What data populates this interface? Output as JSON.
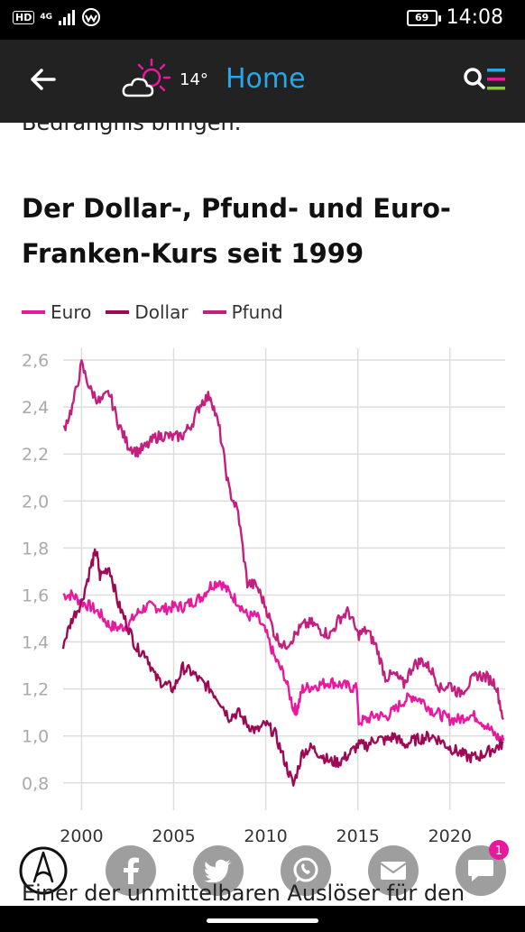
{
  "status_bar": {
    "network_label": "HD",
    "network_type": "4G",
    "battery": "69",
    "time": "14:08"
  },
  "app_bar": {
    "temperature": "14°",
    "home_label": "Home"
  },
  "article": {
    "cut_text_top": "Bedrängnis bringen.",
    "chart_title": "Der Dollar-, Pfund- und Euro-Franken-Kurs seit 1999",
    "next_text": "Einer der unmittelbaren Auslöser für den"
  },
  "chart_data": {
    "type": "line",
    "x_ticks": [
      2000,
      2005,
      2010,
      2015,
      2020
    ],
    "y_ticks": [
      "2,6",
      "2,4",
      "2,2",
      "2,0",
      "1,8",
      "1,6",
      "1,4",
      "1,2",
      "1,0",
      "0,8"
    ],
    "xlim": [
      1999,
      2023
    ],
    "ylim": [
      0.73,
      2.65
    ],
    "grid": "both",
    "legend": "top-left",
    "series": [
      {
        "name": "Euro",
        "color": "#e8199e",
        "x": [
          1999,
          1999.5,
          2000,
          2000.5,
          2001,
          2001.5,
          2002,
          2002.5,
          2003,
          2003.5,
          2004,
          2004.5,
          2005,
          2005.5,
          2006,
          2006.5,
          2007,
          2007.5,
          2008,
          2008.5,
          2009,
          2009.5,
          2010,
          2010.5,
          2011,
          2011.5,
          2011.7,
          2012,
          2012.5,
          2013,
          2013.5,
          2014,
          2014.5,
          2014.95,
          2015.05,
          2015.5,
          2016,
          2016.5,
          2017,
          2017.5,
          2018,
          2018.5,
          2019,
          2019.5,
          2020,
          2020.5,
          2021,
          2021.5,
          2022,
          2022.5,
          2022.9
        ],
        "y": [
          1.6,
          1.6,
          1.57,
          1.55,
          1.52,
          1.47,
          1.46,
          1.47,
          1.52,
          1.55,
          1.55,
          1.54,
          1.55,
          1.55,
          1.57,
          1.59,
          1.64,
          1.66,
          1.61,
          1.57,
          1.51,
          1.51,
          1.44,
          1.33,
          1.26,
          1.12,
          1.11,
          1.2,
          1.21,
          1.22,
          1.23,
          1.22,
          1.21,
          1.2,
          1.06,
          1.07,
          1.09,
          1.08,
          1.11,
          1.15,
          1.17,
          1.15,
          1.11,
          1.09,
          1.07,
          1.07,
          1.09,
          1.08,
          1.04,
          1.0,
          0.98
        ]
      },
      {
        "name": "Dollar",
        "color": "#9c0a55",
        "x": [
          1999,
          1999.5,
          2000,
          2000.5,
          2000.8,
          2001,
          2001.5,
          2002,
          2002.5,
          2003,
          2003.5,
          2004,
          2004.5,
          2005,
          2005.5,
          2006,
          2006.5,
          2007,
          2007.5,
          2008,
          2008.5,
          2009,
          2009.5,
          2010,
          2010.5,
          2011,
          2011.5,
          2012,
          2012.5,
          2013,
          2013.5,
          2014,
          2014.5,
          2015,
          2015.5,
          2016,
          2016.5,
          2017,
          2017.5,
          2018,
          2018.5,
          2019,
          2019.5,
          2020,
          2020.5,
          2021,
          2021.5,
          2022,
          2022.5,
          2022.9
        ],
        "y": [
          1.39,
          1.5,
          1.57,
          1.72,
          1.79,
          1.68,
          1.72,
          1.56,
          1.47,
          1.37,
          1.35,
          1.25,
          1.22,
          1.2,
          1.29,
          1.27,
          1.23,
          1.2,
          1.15,
          1.08,
          1.1,
          1.05,
          1.02,
          1.05,
          1.01,
          0.9,
          0.79,
          0.93,
          0.95,
          0.92,
          0.89,
          0.89,
          0.92,
          0.96,
          0.96,
          0.99,
          0.98,
          1.0,
          0.96,
          0.98,
          0.99,
          1.0,
          0.98,
          0.95,
          0.93,
          0.91,
          0.91,
          0.93,
          0.95,
          0.97
        ]
      },
      {
        "name": "Pfund",
        "color": "#c31f7e",
        "x": [
          1999,
          1999.5,
          2000,
          2000.5,
          2001,
          2001.5,
          2002,
          2002.5,
          2003,
          2003.5,
          2004,
          2004.5,
          2005,
          2005.5,
          2006,
          2006.5,
          2007,
          2007.5,
          2008,
          2008.5,
          2009,
          2009.5,
          2010,
          2010.5,
          2011,
          2011.5,
          2012,
          2012.5,
          2013,
          2013.5,
          2014,
          2014.5,
          2015,
          2015.5,
          2016,
          2016.5,
          2017,
          2017.5,
          2018,
          2018.5,
          2019,
          2019.5,
          2020,
          2020.5,
          2021,
          2021.5,
          2022,
          2022.5,
          2022.9
        ],
        "y": [
          2.3,
          2.4,
          2.58,
          2.47,
          2.42,
          2.46,
          2.33,
          2.24,
          2.21,
          2.23,
          2.27,
          2.28,
          2.27,
          2.28,
          2.33,
          2.42,
          2.45,
          2.3,
          2.05,
          1.95,
          1.65,
          1.64,
          1.55,
          1.43,
          1.38,
          1.42,
          1.47,
          1.48,
          1.45,
          1.43,
          1.5,
          1.53,
          1.43,
          1.45,
          1.38,
          1.25,
          1.26,
          1.22,
          1.3,
          1.32,
          1.28,
          1.2,
          1.22,
          1.18,
          1.22,
          1.26,
          1.25,
          1.22,
          1.07
        ]
      }
    ]
  }
}
